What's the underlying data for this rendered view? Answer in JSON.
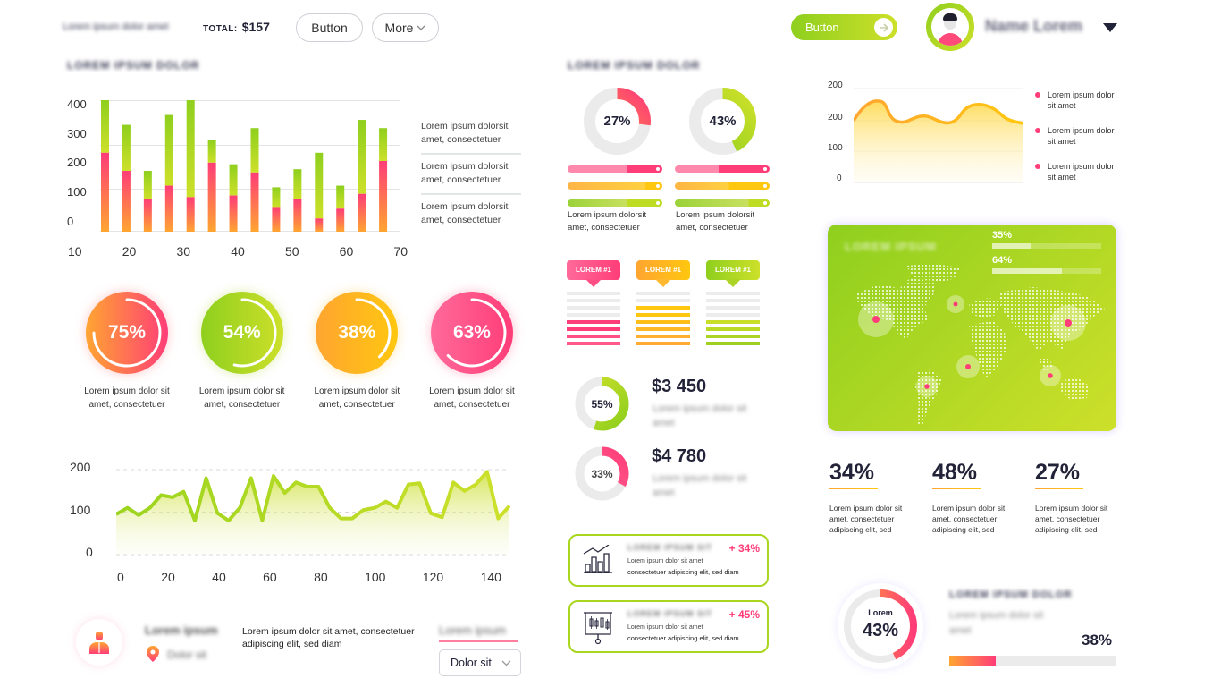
{
  "header": {
    "blurred_text": "Lorem ipsum dolor amet",
    "total_label": "TOTAL:",
    "total_value": "$157",
    "button_label": "Button",
    "more_label": "More",
    "cta_label": "Button",
    "user_name": "Name Lorem"
  },
  "section_titles": {
    "left": "LOREM IPSUM DOLOR",
    "middle": "LOREM IPSUM DOLOR",
    "map": "LOREM IPSUM",
    "bottom_right": "LOREM IPSUM DOLOR"
  },
  "bar_legend": [
    "Lorem ipsum dolorsit amet, consectetuer",
    "Lorem ipsum dolorsit amet, consectetuer",
    "Lorem ipsum dolorsit amet, consectetuer"
  ],
  "rings": [
    {
      "value": "75%",
      "label": "Lorem ipsum dolor sit amet, consectetuer"
    },
    {
      "value": "54%",
      "label": "Lorem ipsum dolor sit amet, consectetuer"
    },
    {
      "value": "38%",
      "label": "Lorem ipsum dolor sit amet, consectetuer"
    },
    {
      "value": "63%",
      "label": "Lorem ipsum dolor sit amet, consectetuer"
    }
  ],
  "donuts_top": [
    {
      "value": "27%",
      "caption": "Lorem ipsum dolorsit amet, consectetuer"
    },
    {
      "value": "43%",
      "caption": "Lorem ipsum dolorsit amet, consectetuer"
    }
  ],
  "tags": [
    {
      "label": "LOREM #1"
    },
    {
      "label": "LOREM #1"
    },
    {
      "label": "LOREM #1"
    }
  ],
  "money": [
    {
      "pct": "55%",
      "amount": "$3 450",
      "desc": "Lorem ipsum dolor sit amet"
    },
    {
      "pct": "33%",
      "amount": "$4 780",
      "desc": "Lorem ipsum dolor sit amet"
    }
  ],
  "cards": [
    {
      "title": "LOREM IPSUM SIT",
      "delta": "+ 34%",
      "line1": "Lorem ipsum dolor sit amet",
      "line2": "consectetuer adipiscing elit, sed diam"
    },
    {
      "title": "LOREM IPSUM SIT",
      "delta": "+ 45%",
      "line1": "Lorem ipsum dolor sit amet",
      "line2": "consectetuer adipiscing elit, sed diam"
    }
  ],
  "area_legend": [
    "Lorem ipsum dolor sit amet",
    "Lorem ipsum dolor sit amet",
    "Lorem ipsum dolor sit amet"
  ],
  "map_stats": [
    {
      "value": "35%",
      "fill": 35
    },
    {
      "value": "64%",
      "fill": 64
    }
  ],
  "stats": [
    {
      "value": "34%",
      "text": "Lorem ipsum dolor sit amet, consectetuer adipiscing elit, sed"
    },
    {
      "value": "48%",
      "text": "Lorem ipsum dolor sit amet, consectetuer adipiscing elit, sed"
    },
    {
      "value": "27%",
      "text": "Lorem ipsum dolor sit amet, consectetuer adipiscing elit, sed"
    }
  ],
  "profile_row": {
    "name": "Lorem ipsum",
    "location": "Dolor sit",
    "description": "Lorem ipsum dolor sit amet, consectetuer adipiscing elit, sed diam",
    "link": "Lorem ipsum",
    "select_value": "Dolor sit"
  },
  "bottom_right": {
    "ring_label": "Lorem",
    "ring_value": "43%",
    "desc": "Lorem ipsum dolor sit amet",
    "progress_value": "38%"
  },
  "colors": {
    "pink": "#ff3d78",
    "orange": "#ffa531",
    "yellow": "#ffc70f",
    "green": "#8fcf1e",
    "lime": "#cde02a",
    "dark": "#222238"
  },
  "chart_data": [
    {
      "type": "bar",
      "title": "LOREM IPSUM DOLOR",
      "stacked": true,
      "x_ticks": [
        "10",
        "20",
        "30",
        "40",
        "50",
        "60",
        "70"
      ],
      "y_ticks": [
        "0",
        "100",
        "200",
        "300",
        "400"
      ],
      "ylim": [
        0,
        400
      ],
      "series": [
        {
          "name": "bottom (pink-orange)",
          "values": [
            240,
            185,
            100,
            140,
            105,
            210,
            110,
            180,
            75,
            100,
            40,
            70,
            115,
            215
          ]
        },
        {
          "name": "top (green)",
          "values": [
            160,
            140,
            85,
            215,
            295,
            70,
            95,
            135,
            60,
            90,
            200,
            70,
            225,
            100
          ]
        }
      ],
      "grid": true
    },
    {
      "type": "area",
      "x_ticks": [
        "0",
        "20",
        "40",
        "60",
        "80",
        "100",
        "120",
        "140"
      ],
      "y_ticks": [
        "0",
        "100",
        "200"
      ],
      "ylim": [
        0,
        200
      ],
      "series": [
        {
          "name": "green line",
          "values": [
            95,
            110,
            93,
            110,
            140,
            135,
            148,
            80,
            180,
            98,
            80,
            110,
            180,
            80,
            185,
            145,
            170,
            160,
            160,
            110,
            85,
            85,
            105,
            110,
            125,
            110,
            165,
            168,
            97,
            88,
            170,
            150,
            165,
            195,
            85,
            115
          ]
        }
      ],
      "grid": "dashed"
    },
    {
      "type": "area",
      "y_ticks": [
        "0",
        "100",
        "200",
        "200"
      ],
      "series": [
        {
          "name": "yellow line",
          "values": [
            200,
            255,
            195,
            205,
            180,
            245,
            190,
            170
          ]
        }
      ],
      "legend": [
        "Lorem ipsum dolor sit amet",
        "Lorem ipsum dolor sit amet",
        "Lorem ipsum dolor sit amet"
      ],
      "legend_position": "right"
    },
    {
      "type": "pie",
      "donuts": [
        {
          "label": "27%",
          "value": 27
        },
        {
          "label": "43%",
          "value": 43
        },
        {
          "label": "55%",
          "value": 55
        },
        {
          "label": "33%",
          "value": 33
        },
        {
          "label": "43%",
          "value": 43
        }
      ]
    }
  ]
}
